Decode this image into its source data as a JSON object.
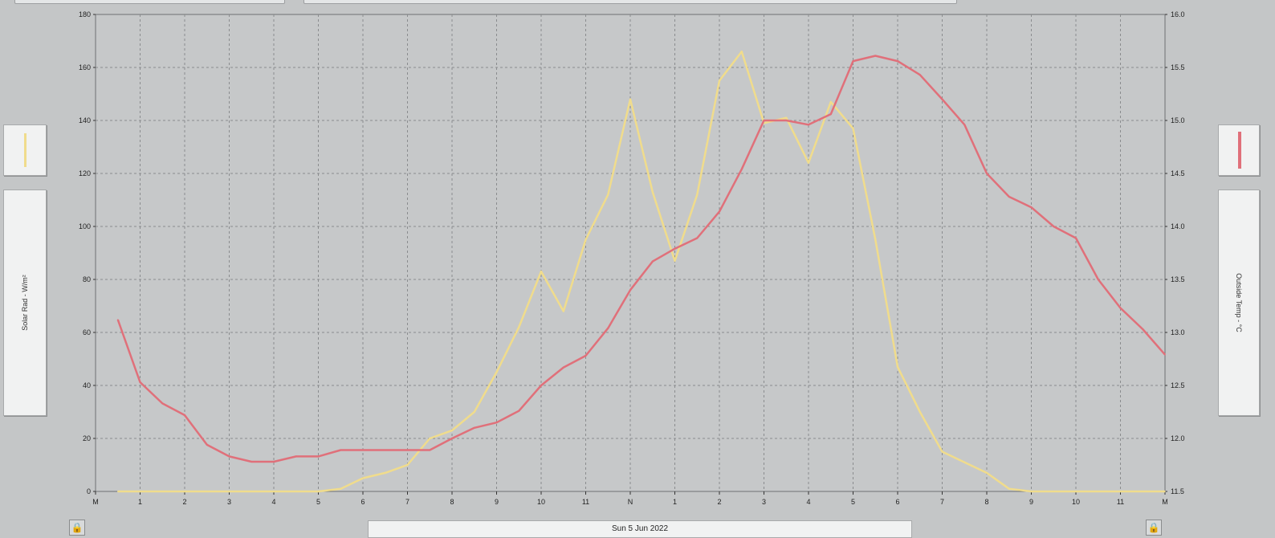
{
  "chart_data": {
    "type": "line",
    "title": "",
    "xlabel": "Sun 5 Jun 2022",
    "x_ticks": [
      "M",
      "1",
      "2",
      "3",
      "4",
      "5",
      "6",
      "7",
      "8",
      "9",
      "10",
      "11",
      "N",
      "1",
      "2",
      "3",
      "4",
      "5",
      "6",
      "7",
      "8",
      "9",
      "10",
      "11",
      "M"
    ],
    "left_axis": {
      "label": "Solar Rad - W/m²",
      "ylim": [
        0,
        180
      ],
      "ticks": [
        "0",
        "20",
        "40",
        "60",
        "80",
        "100",
        "120",
        "140",
        "160",
        "180"
      ]
    },
    "right_axis": {
      "label": "Outside Temp - °C",
      "ylim": [
        11.5,
        16.0
      ],
      "ticks": [
        "11.5",
        "12.0",
        "12.5",
        "13.0",
        "13.5",
        "14.0",
        "14.5",
        "15.0",
        "15.5",
        "16.0"
      ]
    },
    "grid": true,
    "series": [
      {
        "name": "Solar Rad - W/m²",
        "axis": "left",
        "color": "#f0dc8c",
        "x": [
          0.5,
          1,
          1.5,
          2,
          2.5,
          3,
          3.5,
          4,
          4.5,
          5,
          5.5,
          6,
          6.5,
          7,
          7.5,
          8,
          8.5,
          9,
          9.5,
          10,
          10.5,
          11,
          11.5,
          12,
          12.5,
          13,
          13.5,
          14,
          14.5,
          15,
          15.5,
          16,
          16.5,
          17,
          17.5,
          18,
          18.5,
          19,
          19.5,
          20,
          20.5,
          21,
          21.5,
          22,
          22.5,
          23,
          23.5,
          24
        ],
        "values": [
          0,
          0,
          0,
          0,
          0,
          0,
          0,
          0,
          0,
          0,
          1,
          5,
          7,
          10,
          20,
          23,
          30,
          45,
          62,
          83,
          68,
          95,
          112,
          148,
          113,
          87,
          112,
          155,
          166,
          139,
          141,
          124,
          147,
          137,
          95,
          47,
          30,
          15,
          11,
          7,
          1,
          0,
          0,
          0,
          0,
          0,
          0,
          0
        ]
      },
      {
        "name": "Outside Temp - °C",
        "axis": "right",
        "color": "#e0707a",
        "x": [
          0.5,
          1,
          1.5,
          2,
          2.5,
          3,
          3.5,
          4,
          4.5,
          5,
          5.5,
          6,
          6.5,
          7,
          7.5,
          8,
          8.5,
          9,
          9.5,
          10,
          10.5,
          11,
          11.5,
          12,
          12.5,
          13,
          13.5,
          14,
          14.5,
          15,
          15.5,
          16,
          16.5,
          17,
          17.5,
          18,
          18.5,
          19,
          19.5,
          20,
          20.5,
          21,
          21.5,
          22,
          22.5,
          23,
          23.5,
          24
        ],
        "values": [
          13.12,
          12.53,
          12.33,
          12.22,
          11.94,
          11.83,
          11.78,
          11.78,
          11.83,
          11.83,
          11.89,
          11.89,
          11.89,
          11.89,
          11.89,
          12.0,
          12.1,
          12.15,
          12.26,
          12.5,
          12.67,
          12.78,
          13.04,
          13.4,
          13.67,
          13.79,
          13.89,
          14.14,
          14.54,
          15.0,
          15.0,
          14.96,
          15.06,
          15.56,
          15.61,
          15.56,
          15.43,
          15.2,
          14.96,
          14.5,
          14.28,
          14.18,
          14.0,
          13.89,
          13.5,
          13.23,
          13.03,
          12.79
        ]
      }
    ]
  },
  "legend": {
    "left_swatch_color": "#f0dc8c",
    "right_swatch_color": "#e0707a"
  },
  "date_label": "Sun 5 Jun 2022",
  "lock_icon_left": "lock-icon",
  "lock_icon_right": "lock-icon"
}
